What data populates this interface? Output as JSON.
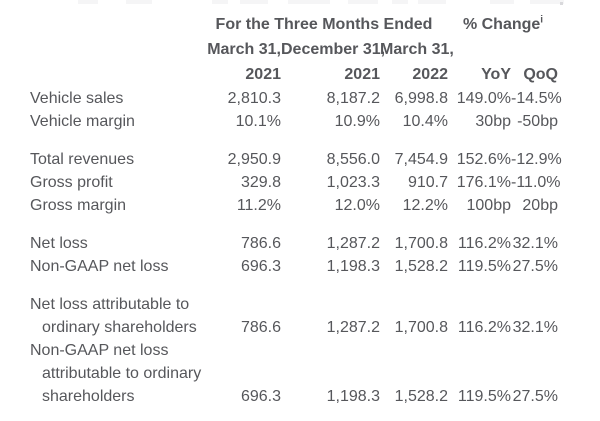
{
  "colors": {
    "text": "#56575B",
    "background": "#FFFFFF"
  },
  "table": {
    "header": {
      "group_period": "For the Three Months Ended",
      "group_change": "% Change",
      "change_footnote": "i",
      "period_cols": [
        "March 31,",
        "December 31,",
        "March 31,"
      ],
      "year_cols": [
        "2021",
        "2021",
        "2022"
      ],
      "change_cols": [
        "YoY",
        "QoQ"
      ]
    },
    "rows": [
      {
        "label": "Vehicle sales",
        "indent": false,
        "values": [
          "2,810.3",
          "8,187.2",
          "6,998.8",
          "149.0%",
          "-14.5%"
        ]
      },
      {
        "label": "Vehicle margin",
        "indent": false,
        "values": [
          "10.1%",
          "10.9%",
          "10.4%",
          "30bp",
          "-50bp"
        ]
      },
      {
        "spacer": true
      },
      {
        "label": "Total revenues",
        "indent": false,
        "values": [
          "2,950.9",
          "8,556.0",
          "7,454.9",
          "152.6%",
          "-12.9%"
        ]
      },
      {
        "label": "Gross profit",
        "indent": false,
        "values": [
          "329.8",
          "1,023.3",
          "910.7",
          "176.1%",
          "-11.0%"
        ]
      },
      {
        "label": "Gross margin",
        "indent": false,
        "values": [
          "11.2%",
          "12.0%",
          "12.2%",
          "100bp",
          "20bp"
        ]
      },
      {
        "spacer": true
      },
      {
        "label": "Net loss",
        "indent": false,
        "values": [
          "786.6",
          "1,287.2",
          "1,700.8",
          "116.2%",
          "32.1%"
        ]
      },
      {
        "label": "Non-GAAP net loss",
        "indent": false,
        "values": [
          "696.3",
          "1,198.3",
          "1,528.2",
          "119.5%",
          "27.5%"
        ]
      },
      {
        "spacer": true
      },
      {
        "label": "Net loss attributable to",
        "indent": false
      },
      {
        "label": "ordinary shareholders",
        "indent": true,
        "values": [
          "786.6",
          "1,287.2",
          "1,700.8",
          "116.2%",
          "32.1%"
        ]
      },
      {
        "label": "Non-GAAP net loss",
        "indent": false
      },
      {
        "label": "attributable to ordinary",
        "indent": true
      },
      {
        "label": "shareholders",
        "indent": true,
        "values": [
          "696.3",
          "1,198.3",
          "1,528.2",
          "119.5%",
          "27.5%"
        ]
      }
    ]
  }
}
